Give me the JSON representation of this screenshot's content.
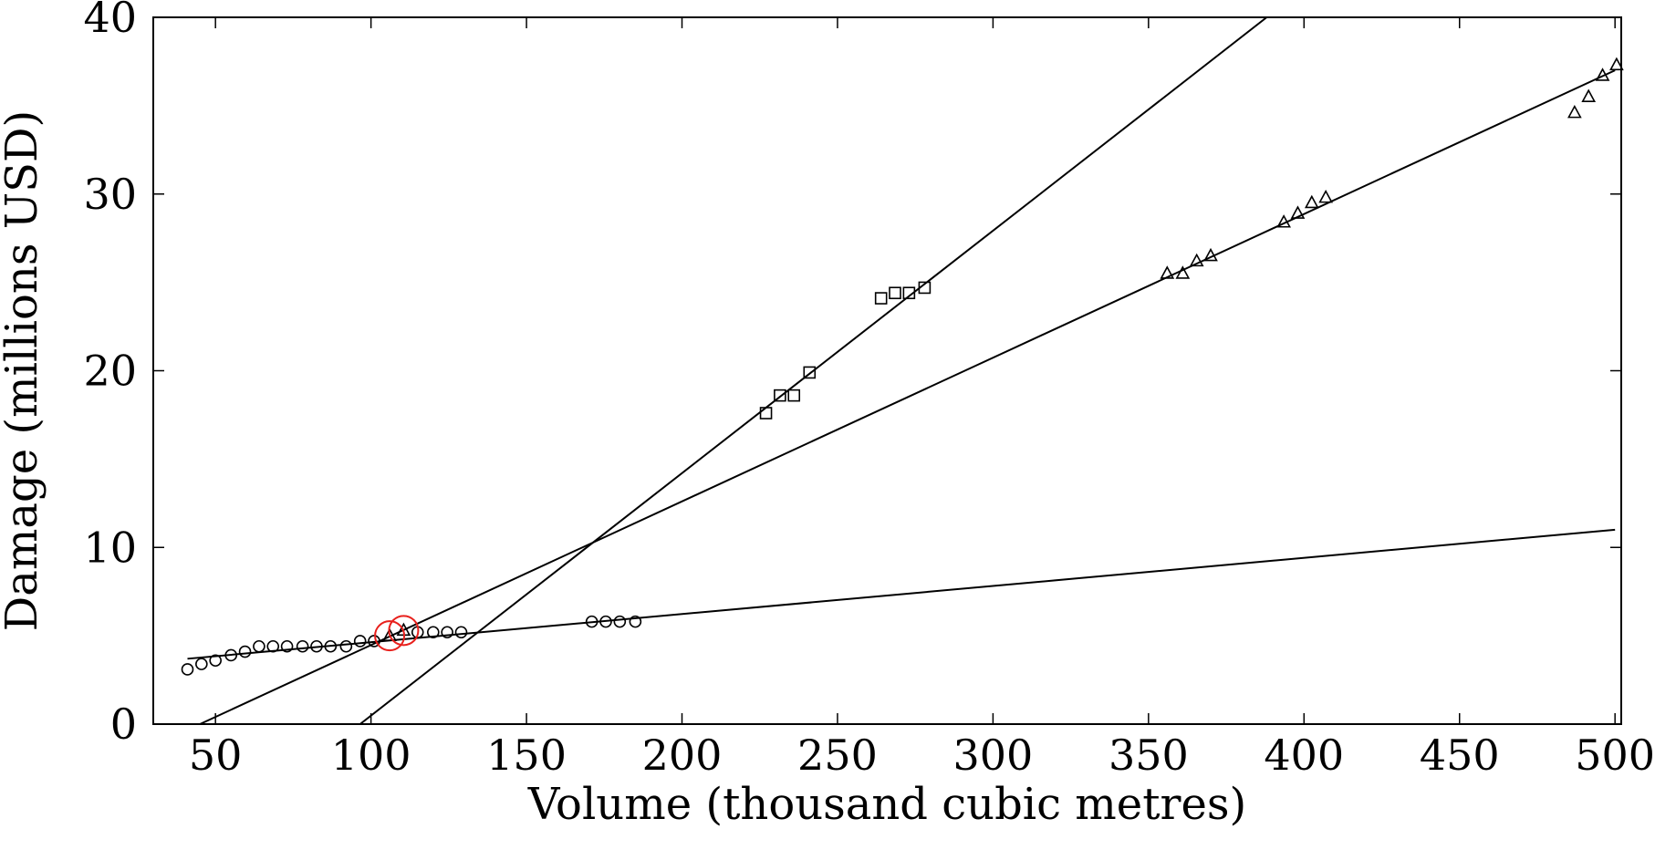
{
  "chart_data": {
    "type": "scatter",
    "title": "",
    "xlabel": "Volume (thousand cubic metres)",
    "ylabel": "Damage (millions USD)",
    "xlim": [
      30,
      502
    ],
    "ylim": [
      0,
      40
    ],
    "xticks": [
      50,
      100,
      150,
      200,
      250,
      300,
      350,
      400,
      450,
      500
    ],
    "yticks": [
      0,
      10,
      20,
      30,
      40
    ],
    "grid": false,
    "legend": "none",
    "colors": {
      "axis": "#000000",
      "series": "#000000",
      "highlight": "#e8201c"
    },
    "series": [
      {
        "marker": "circle",
        "points": [
          [
            41,
            3.1
          ],
          [
            45.5,
            3.4
          ],
          [
            50,
            3.6
          ],
          [
            55,
            3.9
          ],
          [
            59.5,
            4.1
          ],
          [
            64,
            4.4
          ],
          [
            68.5,
            4.4
          ],
          [
            73,
            4.4
          ],
          [
            78,
            4.4
          ],
          [
            82.5,
            4.4
          ],
          [
            87,
            4.4
          ],
          [
            92,
            4.4
          ],
          [
            96.5,
            4.7
          ],
          [
            101,
            4.7
          ],
          [
            115,
            5.2
          ],
          [
            120,
            5.2
          ],
          [
            124.5,
            5.2
          ],
          [
            129,
            5.2
          ],
          [
            171,
            5.8
          ],
          [
            175.5,
            5.8
          ],
          [
            180,
            5.8
          ],
          [
            185,
            5.8
          ]
        ],
        "fit": [
          [
            41,
            3.7
          ],
          [
            500,
            11.0
          ]
        ]
      },
      {
        "marker": "square",
        "points": [
          [
            227,
            17.6
          ],
          [
            231.5,
            18.6
          ],
          [
            236,
            18.6
          ],
          [
            241,
            19.9
          ],
          [
            264,
            24.1
          ],
          [
            268.5,
            24.4
          ],
          [
            273,
            24.4
          ],
          [
            278,
            24.7
          ]
        ],
        "fit": [
          [
            96.5,
            0
          ],
          [
            388,
            40
          ]
        ]
      },
      {
        "marker": "triangle",
        "points": [
          [
            106,
            5.0
          ],
          [
            110.5,
            5.3
          ],
          [
            356,
            25.5
          ],
          [
            361,
            25.5
          ],
          [
            365.5,
            26.2
          ],
          [
            370,
            26.5
          ],
          [
            393.5,
            28.4
          ],
          [
            398,
            28.9
          ],
          [
            402.5,
            29.5
          ],
          [
            407,
            29.8
          ],
          [
            487,
            34.6
          ],
          [
            491.5,
            35.5
          ],
          [
            496,
            36.7
          ],
          [
            500.5,
            37.3
          ]
        ],
        "fit": [
          [
            45,
            0
          ],
          [
            500,
            37.0
          ]
        ]
      }
    ],
    "highlights": [
      [
        106,
        5.0
      ],
      [
        110.5,
        5.3
      ]
    ]
  }
}
